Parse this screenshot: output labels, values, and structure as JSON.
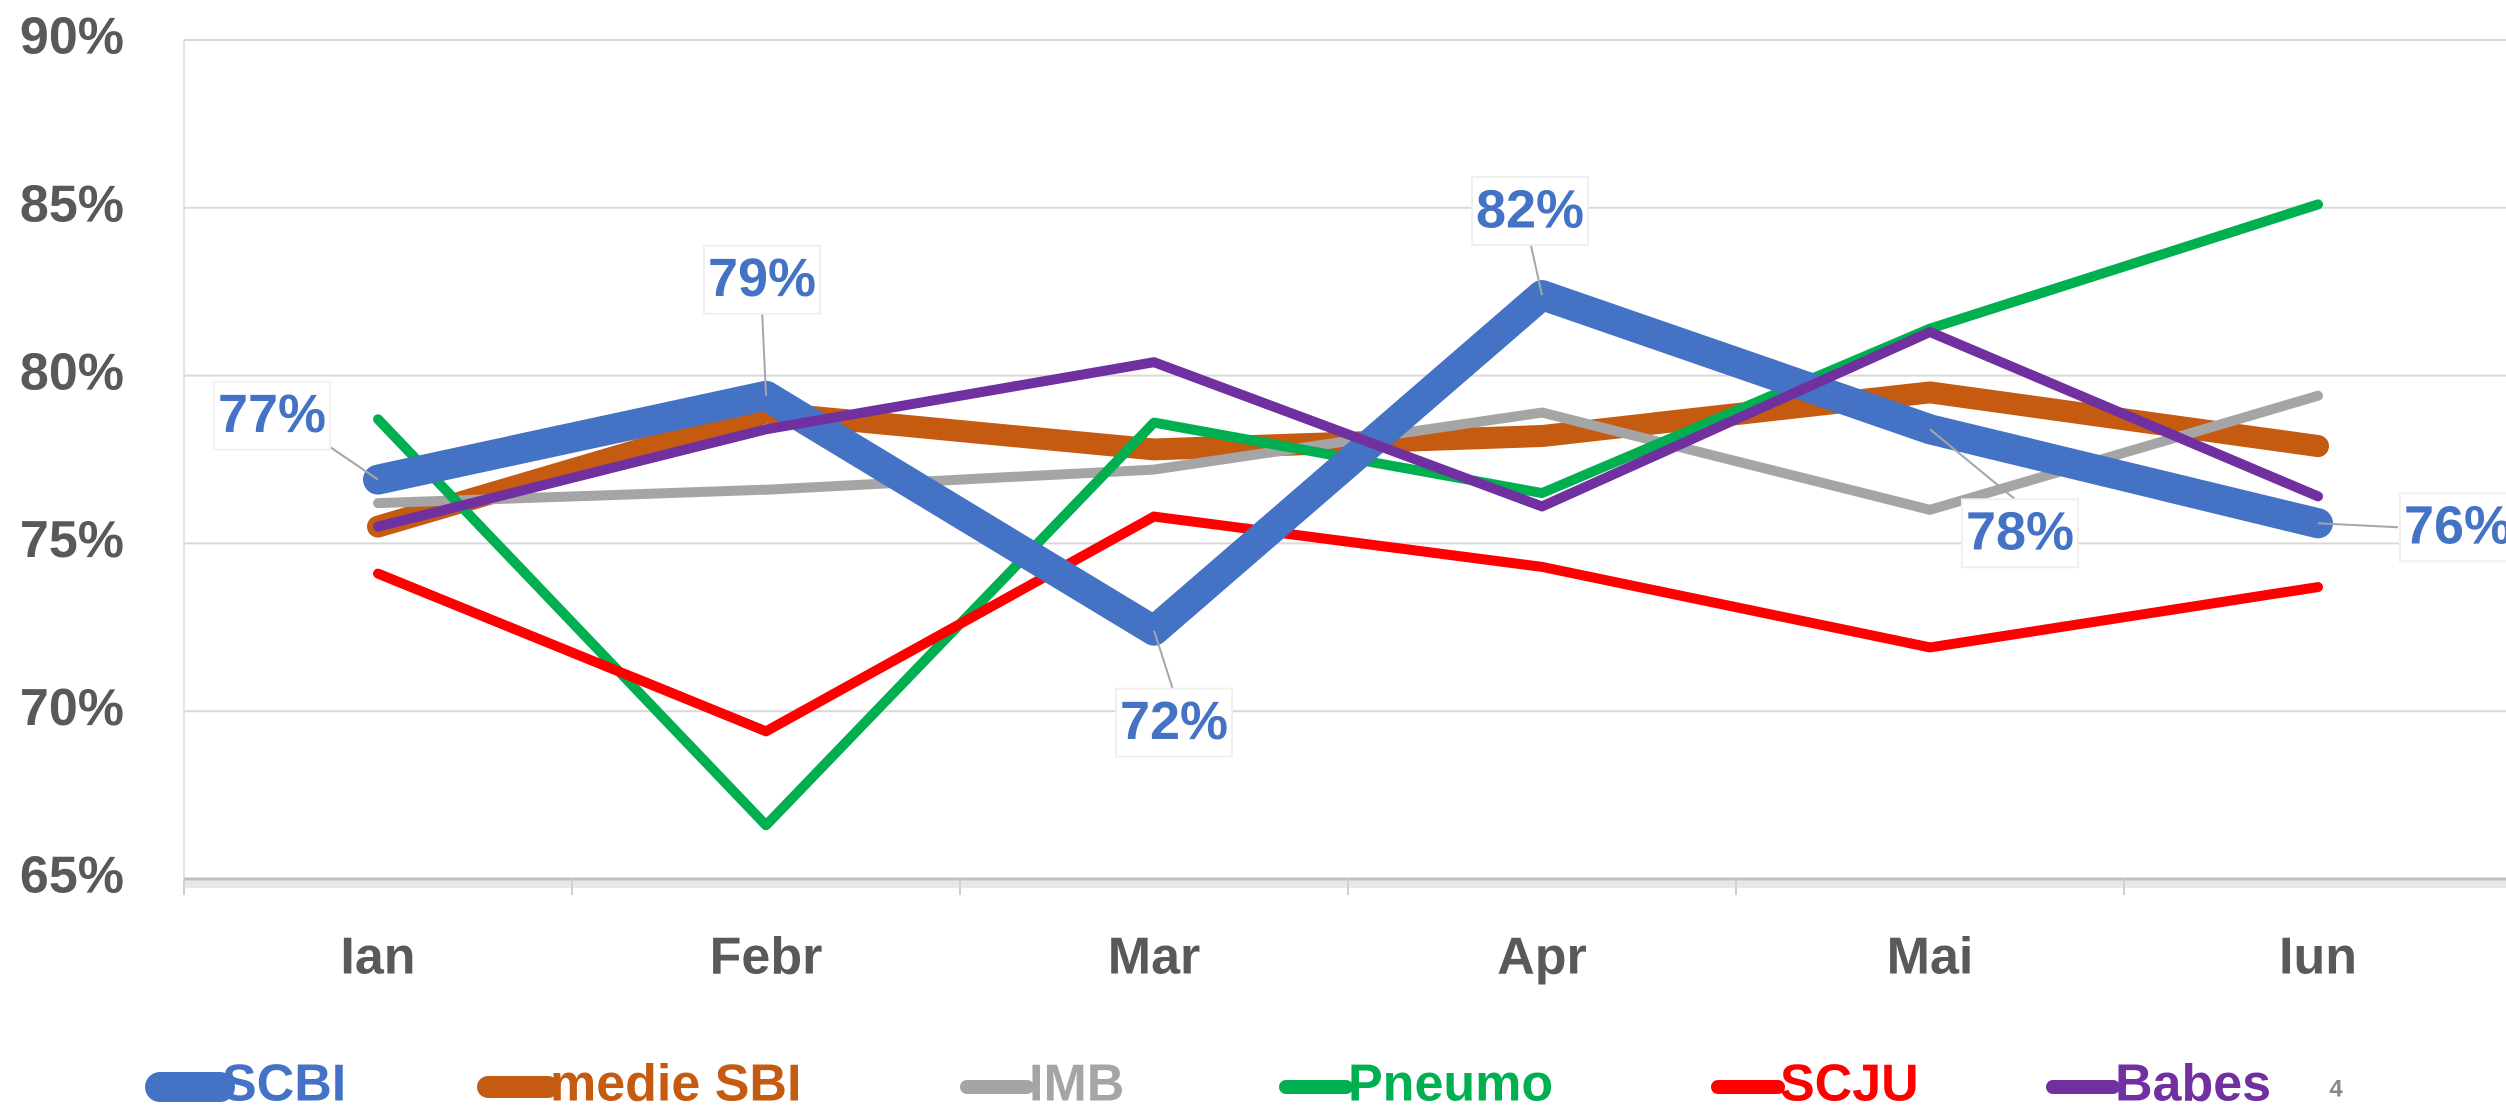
{
  "chart_data": {
    "type": "line",
    "categories": [
      "Ian",
      "Febr",
      "Mar",
      "Apr",
      "Mai",
      "Iun"
    ],
    "series": [
      {
        "name": "SCBI",
        "color": "#4472c4",
        "values": [
          76.9,
          79.4,
          72.4,
          82.4,
          78.4,
          75.6
        ],
        "value_labels": [
          "77%",
          "79%",
          "72%",
          "82%",
          "78%",
          "76%"
        ]
      },
      {
        "name": "medie SBI",
        "color": "#c55a11",
        "values": [
          75.5,
          78.9,
          77.8,
          78.2,
          79.5,
          77.9
        ]
      },
      {
        "name": "IMB",
        "color": "#a5a5a5",
        "values": [
          76.2,
          76.6,
          77.2,
          78.9,
          76.0,
          79.4
        ]
      },
      {
        "name": "Pneumo",
        "color": "#00b050",
        "values": [
          78.7,
          66.6,
          78.6,
          76.5,
          81.4,
          85.1
        ]
      },
      {
        "name": "SCJU",
        "color": "#ff0000",
        "values": [
          74.1,
          69.4,
          75.8,
          74.3,
          71.9,
          73.7
        ]
      },
      {
        "name": "Babes",
        "color": "#7030a0",
        "values": [
          75.5,
          78.4,
          80.4,
          76.1,
          81.3,
          76.4
        ]
      }
    ],
    "ylim": [
      65,
      90
    ],
    "yticks": [
      {
        "value": 65,
        "label": "65%"
      },
      {
        "value": 70,
        "label": "70%"
      },
      {
        "value": 75,
        "label": "75%"
      },
      {
        "value": 80,
        "label": "80%"
      },
      {
        "value": 85,
        "label": "85%"
      },
      {
        "value": 90,
        "label": "90%"
      }
    ],
    "grid": true,
    "legend": "bottom",
    "page_number": "4"
  }
}
